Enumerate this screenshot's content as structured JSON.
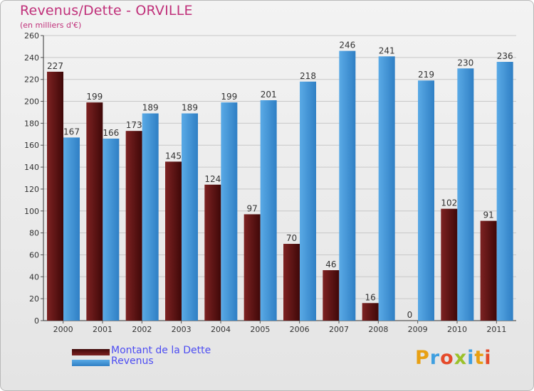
{
  "title": "Revenus/Dette - ORVILLE",
  "subtitle": "(en milliers d'€)",
  "logo_text": "Proxiti",
  "colors": {
    "debt": "#7d2222",
    "debt_dark": "#3f0808",
    "revenue": "#5aaae6",
    "revenue_dark": "#2f7fc4",
    "title": "#c0307a",
    "legend_text": "#4d4df2"
  },
  "legend": {
    "debt_label": "Montant de la Dette",
    "revenue_label": "Revenus"
  },
  "chart_data": {
    "type": "bar",
    "title": "Revenus/Dette - ORVILLE",
    "subtitle": "(en milliers d'€)",
    "categories": [
      "2000",
      "2001",
      "2002",
      "2003",
      "2004",
      "2005",
      "2006",
      "2007",
      "2008",
      "2009",
      "2010",
      "2011"
    ],
    "series": [
      {
        "name": "Montant de la Dette",
        "values": [
          227,
          199,
          173,
          145,
          124,
          97,
          70,
          46,
          16,
          0,
          102,
          91
        ]
      },
      {
        "name": "Revenus",
        "values": [
          167,
          166,
          189,
          189,
          199,
          201,
          218,
          246,
          241,
          219,
          230,
          236
        ]
      }
    ],
    "y_ticks": [
      0,
      20,
      40,
      60,
      80,
      100,
      120,
      140,
      160,
      180,
      200,
      220,
      240,
      260
    ],
    "ylim": [
      0,
      260
    ],
    "grid": true,
    "legend_position": "bottom-left"
  }
}
